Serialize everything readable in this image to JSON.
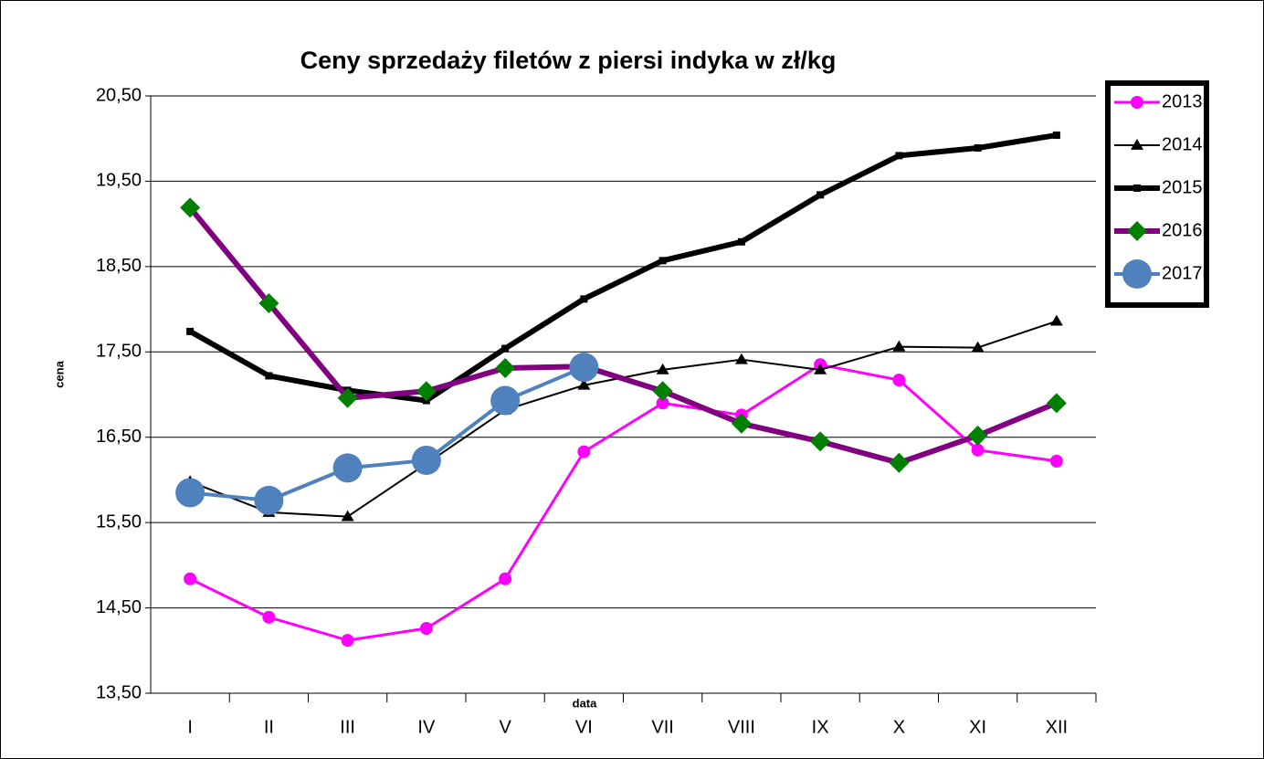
{
  "chart_data": {
    "type": "line",
    "title": "Ceny sprzedaży filetów z  piersi indyka w zł/kg",
    "y_label": "cena",
    "x_label": "data",
    "categories": [
      "I",
      "II",
      "III",
      "IV",
      "V",
      "VI",
      "VII",
      "VIII",
      "IX",
      "X",
      "XI",
      "XII"
    ],
    "ylim": [
      13.5,
      20.5
    ],
    "yticks": [
      {
        "value": 13.5,
        "label": "13,50"
      },
      {
        "value": 14.5,
        "label": "14,50"
      },
      {
        "value": 15.5,
        "label": "15,50"
      },
      {
        "value": 16.5,
        "label": "16,50"
      },
      {
        "value": 17.5,
        "label": "17,50"
      },
      {
        "value": 18.5,
        "label": "18,50"
      },
      {
        "value": 19.5,
        "label": "19,50"
      },
      {
        "value": 20.5,
        "label": "20,50"
      }
    ],
    "grid": true,
    "legend": "right",
    "series": [
      {
        "name": "2013r",
        "color": "#ff00ff",
        "marker": "circle",
        "values": [
          14.84,
          14.39,
          14.12,
          14.26,
          14.84,
          16.33,
          16.9,
          16.76,
          17.35,
          17.17,
          16.35,
          16.22
        ]
      },
      {
        "name": "2014r",
        "color": "#000000",
        "marker": "triangle",
        "values": [
          15.98,
          15.62,
          15.57,
          16.19,
          16.82,
          17.11,
          17.29,
          17.41,
          17.29,
          17.56,
          17.55,
          17.86
        ]
      },
      {
        "name": "2015r",
        "color": "#000000",
        "marker": "square",
        "values": [
          17.74,
          17.22,
          17.05,
          16.93,
          17.54,
          18.12,
          18.57,
          18.79,
          19.34,
          19.8,
          19.89,
          20.04
        ]
      },
      {
        "name": "2016r",
        "color": "#800080",
        "marker_color": "#008000",
        "marker": "diamond",
        "values": [
          19.19,
          18.07,
          16.96,
          17.04,
          17.31,
          17.33,
          17.04,
          16.66,
          16.45,
          16.2,
          16.52,
          16.9
        ]
      },
      {
        "name": "2017r",
        "color": "#4f81bd",
        "marker": "circle",
        "values": [
          15.85,
          15.76,
          16.14,
          16.23,
          16.93,
          17.32,
          null,
          null,
          null,
          null,
          null,
          null
        ]
      }
    ]
  }
}
